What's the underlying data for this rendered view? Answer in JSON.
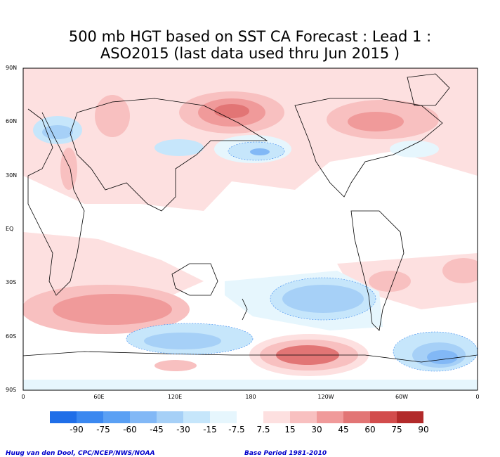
{
  "header": {
    "title_line1": "500 mb HGT based on SST CA Forecast : Lead 1 :",
    "title_line2": "ASO2015 (last data used thru Jun 2015 )"
  },
  "map": {
    "lat_labels": [
      "90N",
      "60N",
      "30N",
      "EQ",
      "30S",
      "60S",
      "90S"
    ],
    "lon_labels": [
      "0",
      "60E",
      "120E",
      "180",
      "120W",
      "60W",
      "0"
    ],
    "projection": "equirectangular",
    "lon_range": [
      0,
      360
    ],
    "lat_range": [
      -90,
      90
    ]
  },
  "legend": {
    "labels": [
      "-90",
      "-75",
      "-60",
      "-45",
      "-30",
      "-15",
      "-7.5",
      "7.5",
      "15",
      "30",
      "45",
      "60",
      "75",
      "90"
    ],
    "colors": [
      "#1f6ee8",
      "#3b88f0",
      "#5aa0f4",
      "#82b8f6",
      "#a6d0f7",
      "#c6e6fb",
      "#e6f6fd",
      "#ffffff",
      "#fde0e0",
      "#f8c0c0",
      "#f09a9a",
      "#e27575",
      "#d24c4c",
      "#b22a2a"
    ]
  },
  "credits": {
    "left": "Huug van den Dool, CPC/NCEP/NWS/NOAA",
    "right": "Base Period 1981-2010"
  }
}
